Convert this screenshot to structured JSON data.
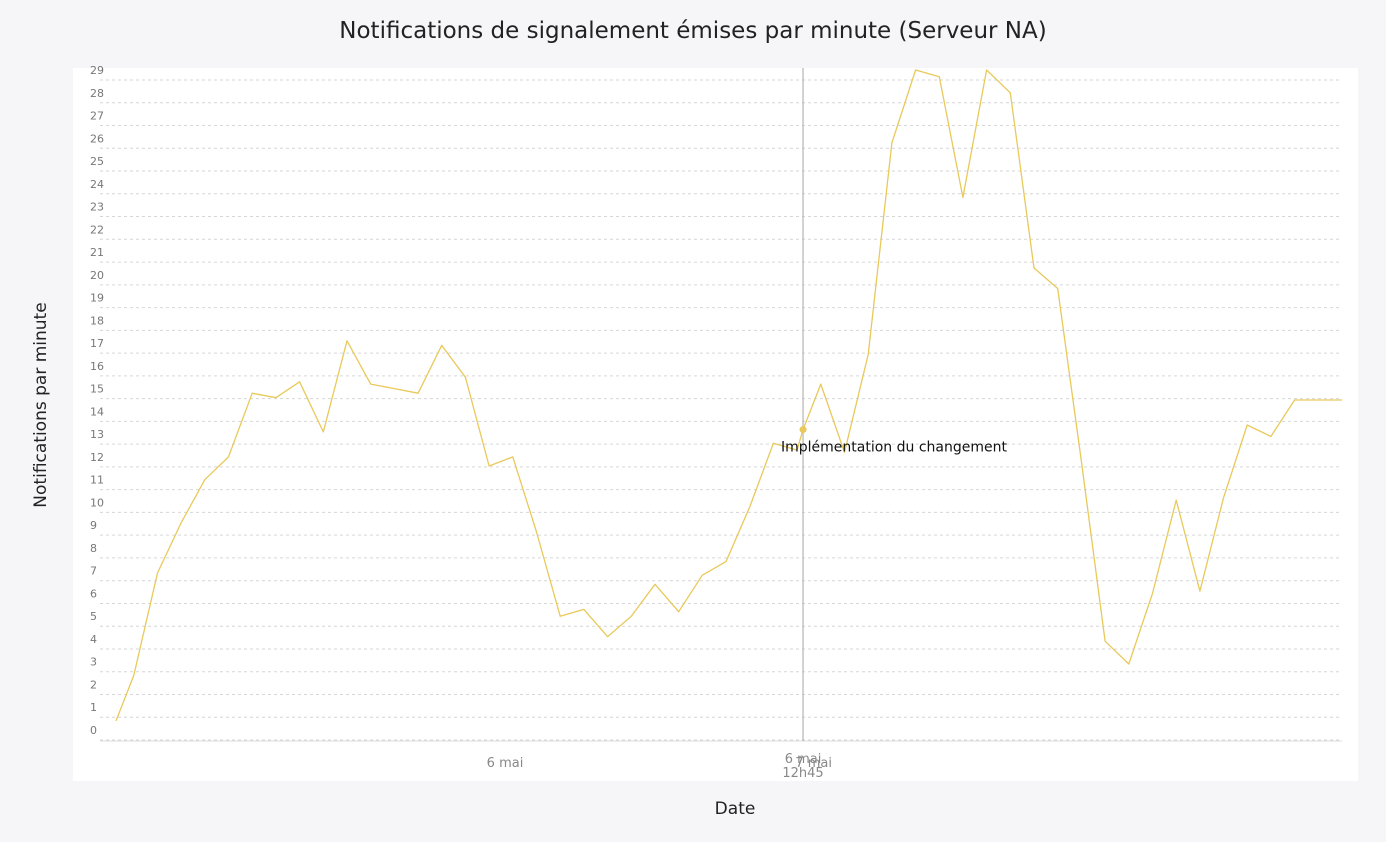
{
  "chart_data": {
    "type": "line",
    "title": "Notifications de signalement émises par minute (Serveur NA)",
    "xlabel": "Date",
    "ylabel": "Notifications par minute",
    "ylim": [
      0,
      29
    ],
    "yticks": [
      0,
      1,
      2,
      3,
      4,
      5,
      6,
      7,
      8,
      9,
      10,
      11,
      12,
      13,
      14,
      15,
      16,
      17,
      18,
      19,
      20,
      21,
      22,
      23,
      24,
      25,
      26,
      27,
      28,
      29
    ],
    "xticks": [
      {
        "x": 16.42,
        "label": "6 mai"
      },
      {
        "x": 29.45,
        "label": "7 mai"
      }
    ],
    "grid": true,
    "color": "#e8c95a",
    "marker": {
      "x": 29.0,
      "label_line1": "6 mai",
      "label_line2": "12h45"
    },
    "annotation": {
      "x": 29.0,
      "y": 13.2,
      "label": "Implémentation du changement"
    },
    "x": [
      0,
      0.75,
      1.75,
      2.75,
      3.75,
      4.75,
      5.75,
      6.75,
      7.75,
      8.75,
      9.75,
      10.75,
      11.75,
      12.75,
      13.75,
      14.75,
      15.75,
      16.75,
      17.75,
      18.75,
      19.75,
      20.75,
      21.75,
      22.75,
      23.75,
      24.75,
      25.75,
      26.75,
      27.75,
      28.75,
      29.0,
      29.75,
      30.75,
      31.75,
      32.75,
      33.75,
      34.75,
      35.75,
      36.75,
      37.75,
      38.75,
      39.75,
      40.75,
      41.75,
      42.75,
      43.75,
      44.75,
      45.75,
      46.75,
      47.75,
      48.75,
      49.75,
      50.75,
      51.75
    ],
    "values": [
      0.4,
      2.4,
      6.9,
      9.1,
      11.0,
      12.0,
      14.8,
      14.6,
      15.3,
      13.1,
      17.1,
      15.2,
      15.0,
      14.8,
      16.9,
      15.5,
      11.6,
      12.0,
      8.7,
      5.0,
      5.3,
      4.1,
      5.0,
      6.4,
      5.2,
      6.8,
      7.4,
      9.8,
      12.6,
      12.3,
      13.2,
      15.2,
      12.2,
      16.5,
      25.8,
      29.0,
      28.7,
      23.4,
      29.0,
      28.0,
      20.3,
      19.4,
      11.8,
      3.9,
      2.9,
      6.0,
      10.1,
      6.1,
      10.2,
      13.4,
      12.9,
      14.5,
      14.5,
      14.5
    ]
  }
}
